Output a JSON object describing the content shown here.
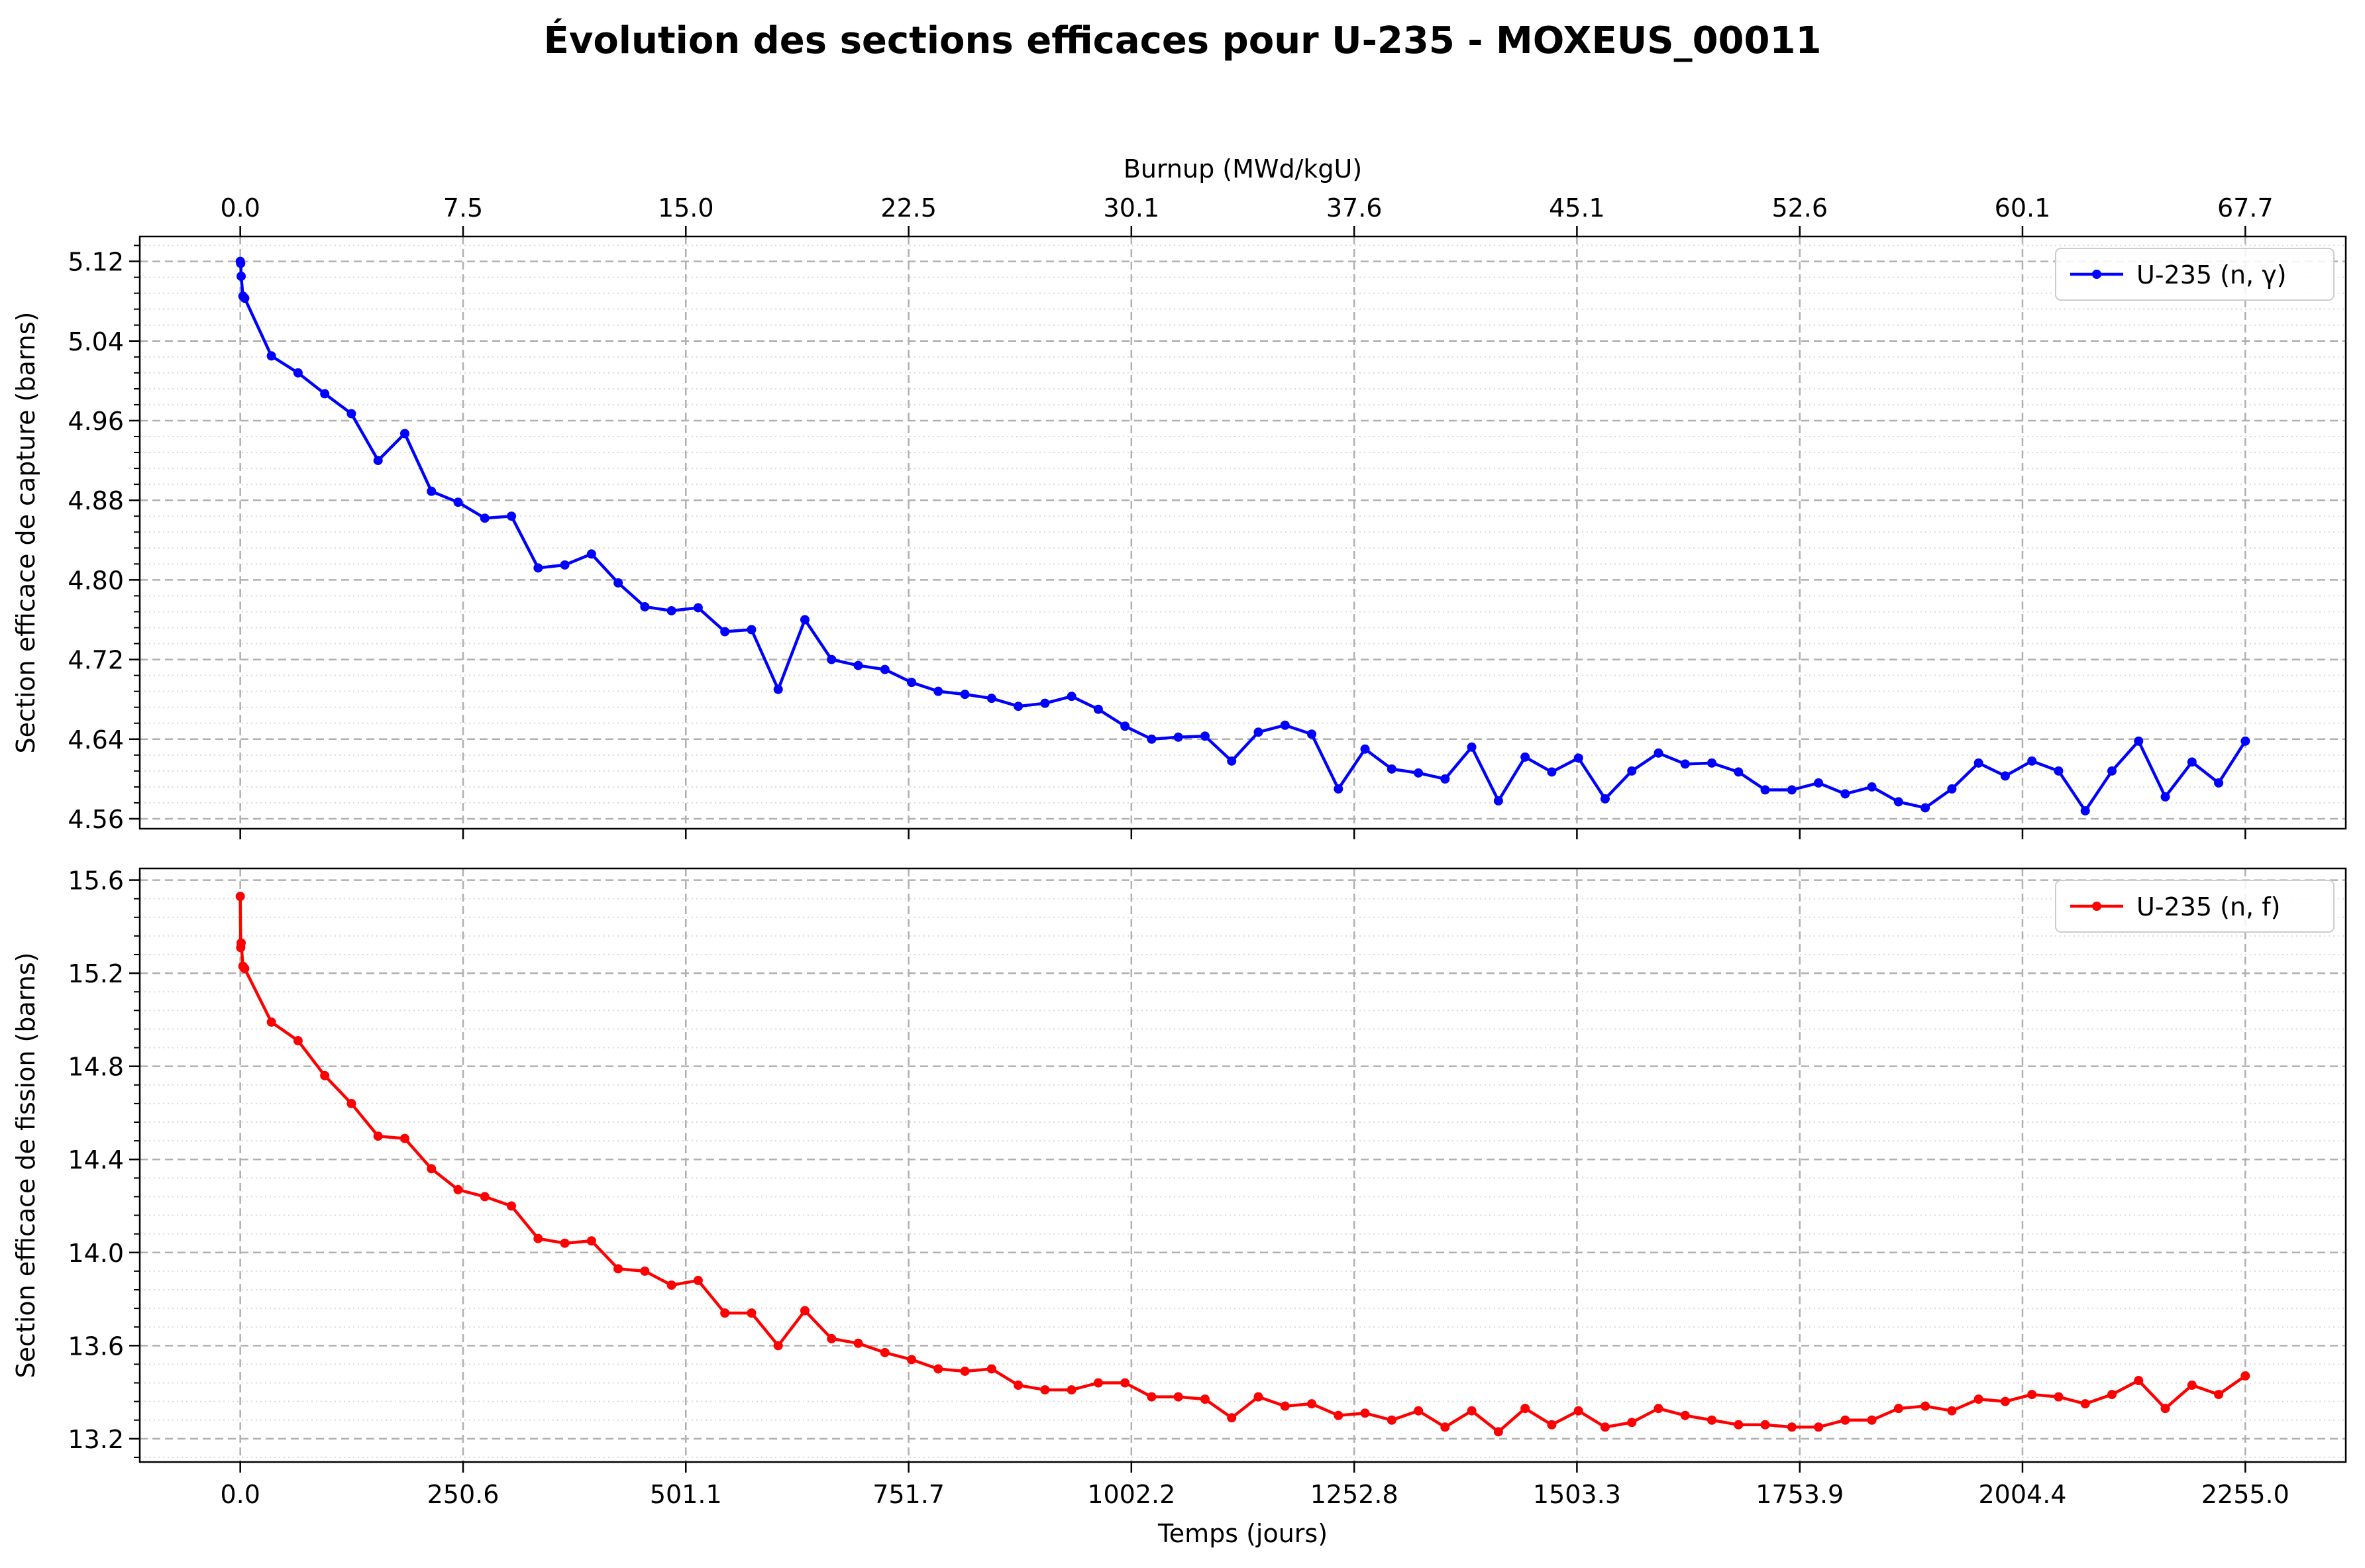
{
  "figure": {
    "title": "Évolution des sections efficaces pour U-235 - MOXEUS_00011"
  },
  "chart_data": [
    {
      "type": "line",
      "panel": "top",
      "ylabel": "Section efficace de capture (barns)",
      "x2label": "Burnup (MWd/kgU)",
      "ylim": [
        4.55,
        5.145
      ],
      "yticks": [
        4.56,
        4.64,
        4.72,
        4.8,
        4.88,
        4.96,
        5.04,
        5.12
      ],
      "ytick_labels": [
        "4.56",
        "4.64",
        "4.72",
        "4.80",
        "4.88",
        "4.96",
        "5.04",
        "5.12"
      ],
      "xlim": [
        -113,
        2368
      ],
      "x2ticks": [
        0.0,
        7.5,
        15.0,
        22.5,
        30.1,
        37.6,
        45.1,
        52.6,
        60.1,
        67.7
      ],
      "x2tick_labels": [
        "0.0",
        "7.5",
        "15.0",
        "22.5",
        "30.1",
        "37.6",
        "45.1",
        "52.6",
        "60.1",
        "67.7"
      ],
      "x2tick_positions": [
        0.0,
        250.6,
        501.1,
        751.7,
        1002.2,
        1252.8,
        1503.3,
        1753.9,
        2004.4,
        2255.0
      ],
      "grid": true,
      "legend_position": "upper-right",
      "series": [
        {
          "name": "U-235 (n, γ)",
          "color": "#0000ff",
          "x": [
            0,
            0.5,
            1,
            3,
            5,
            35,
            65,
            95,
            125,
            155,
            185,
            215,
            245,
            275,
            305,
            335,
            365,
            395,
            425,
            455,
            485,
            515,
            545,
            575,
            605,
            635,
            665,
            695,
            725,
            755,
            785,
            815,
            845,
            875,
            905,
            935,
            965,
            995,
            1025,
            1055,
            1085,
            1115,
            1145,
            1175,
            1205,
            1235,
            1265,
            1295,
            1325,
            1355,
            1385,
            1415,
            1445,
            1475,
            1505,
            1535,
            1565,
            1595,
            1625,
            1655,
            1685,
            1715,
            1745,
            1775,
            1805,
            1835,
            1865,
            1895,
            1925,
            1955,
            1985,
            2015,
            2045,
            2075,
            2105,
            2135,
            2165,
            2195,
            2225,
            2255
          ],
          "y": [
            5.12,
            5.118,
            5.105,
            5.085,
            5.083,
            5.025,
            5.008,
            4.987,
            4.967,
            4.92,
            4.947,
            4.889,
            4.878,
            4.862,
            4.864,
            4.812,
            4.815,
            4.826,
            4.797,
            4.773,
            4.769,
            4.772,
            4.748,
            4.75,
            4.69,
            4.76,
            4.72,
            4.714,
            4.71,
            4.697,
            4.688,
            4.685,
            4.681,
            4.673,
            4.676,
            4.683,
            4.67,
            4.653,
            4.64,
            4.642,
            4.643,
            4.618,
            4.647,
            4.654,
            4.645,
            4.59,
            4.63,
            4.61,
            4.606,
            4.6,
            4.632,
            4.578,
            4.622,
            4.607,
            4.621,
            4.58,
            4.608,
            4.626,
            4.615,
            4.616,
            4.607,
            4.589,
            4.589,
            4.596,
            4.585,
            4.592,
            4.577,
            4.571,
            4.59,
            4.616,
            4.603,
            4.618,
            4.608,
            4.568,
            4.608,
            4.638,
            4.582,
            4.617,
            4.596,
            4.638
          ]
        }
      ]
    },
    {
      "type": "line",
      "panel": "bottom",
      "ylabel": "Section efficace de fission (barns)",
      "xlabel": "Temps (jours)",
      "ylim": [
        13.1,
        15.65
      ],
      "yticks": [
        13.2,
        13.6,
        14.0,
        14.4,
        14.8,
        15.2,
        15.6
      ],
      "ytick_labels": [
        "13.2",
        "13.6",
        "14.0",
        "14.4",
        "14.8",
        "15.2",
        "15.6"
      ],
      "xlim": [
        -113,
        2368
      ],
      "xticks": [
        0.0,
        250.6,
        501.1,
        751.7,
        1002.2,
        1252.8,
        1503.3,
        1753.9,
        2004.4,
        2255.0
      ],
      "xtick_labels": [
        "0.0",
        "250.6",
        "501.1",
        "751.7",
        "1002.2",
        "1252.8",
        "1503.3",
        "1753.9",
        "2004.4",
        "2255.0"
      ],
      "grid": true,
      "legend_position": "upper-right",
      "series": [
        {
          "name": "U-235 (n, f)",
          "color": "#ff0000",
          "x": [
            0,
            0.5,
            1,
            3,
            5,
            35,
            65,
            95,
            125,
            155,
            185,
            215,
            245,
            275,
            305,
            335,
            365,
            395,
            425,
            455,
            485,
            515,
            545,
            575,
            605,
            635,
            665,
            695,
            725,
            755,
            785,
            815,
            845,
            875,
            905,
            935,
            965,
            995,
            1025,
            1055,
            1085,
            1115,
            1145,
            1175,
            1205,
            1235,
            1265,
            1295,
            1325,
            1355,
            1385,
            1415,
            1445,
            1475,
            1505,
            1535,
            1565,
            1595,
            1625,
            1655,
            1685,
            1715,
            1745,
            1775,
            1805,
            1835,
            1865,
            1895,
            1925,
            1955,
            1985,
            2015,
            2045,
            2075,
            2105,
            2135,
            2165,
            2195,
            2225,
            2255
          ],
          "y": [
            15.53,
            15.31,
            15.33,
            15.23,
            15.22,
            14.99,
            14.91,
            14.76,
            14.64,
            14.5,
            14.49,
            14.36,
            14.27,
            14.24,
            14.2,
            14.06,
            14.04,
            14.05,
            13.93,
            13.92,
            13.86,
            13.88,
            13.74,
            13.74,
            13.6,
            13.75,
            13.63,
            13.61,
            13.57,
            13.54,
            13.5,
            13.49,
            13.5,
            13.43,
            13.41,
            13.41,
            13.44,
            13.44,
            13.38,
            13.38,
            13.37,
            13.29,
            13.38,
            13.34,
            13.35,
            13.3,
            13.31,
            13.28,
            13.32,
            13.25,
            13.32,
            13.23,
            13.33,
            13.26,
            13.32,
            13.25,
            13.27,
            13.33,
            13.3,
            13.28,
            13.26,
            13.26,
            13.25,
            13.25,
            13.28,
            13.28,
            13.33,
            13.34,
            13.32,
            13.37,
            13.36,
            13.39,
            13.38,
            13.35,
            13.39,
            13.45,
            13.33,
            13.43,
            13.39,
            13.47
          ]
        }
      ]
    }
  ]
}
